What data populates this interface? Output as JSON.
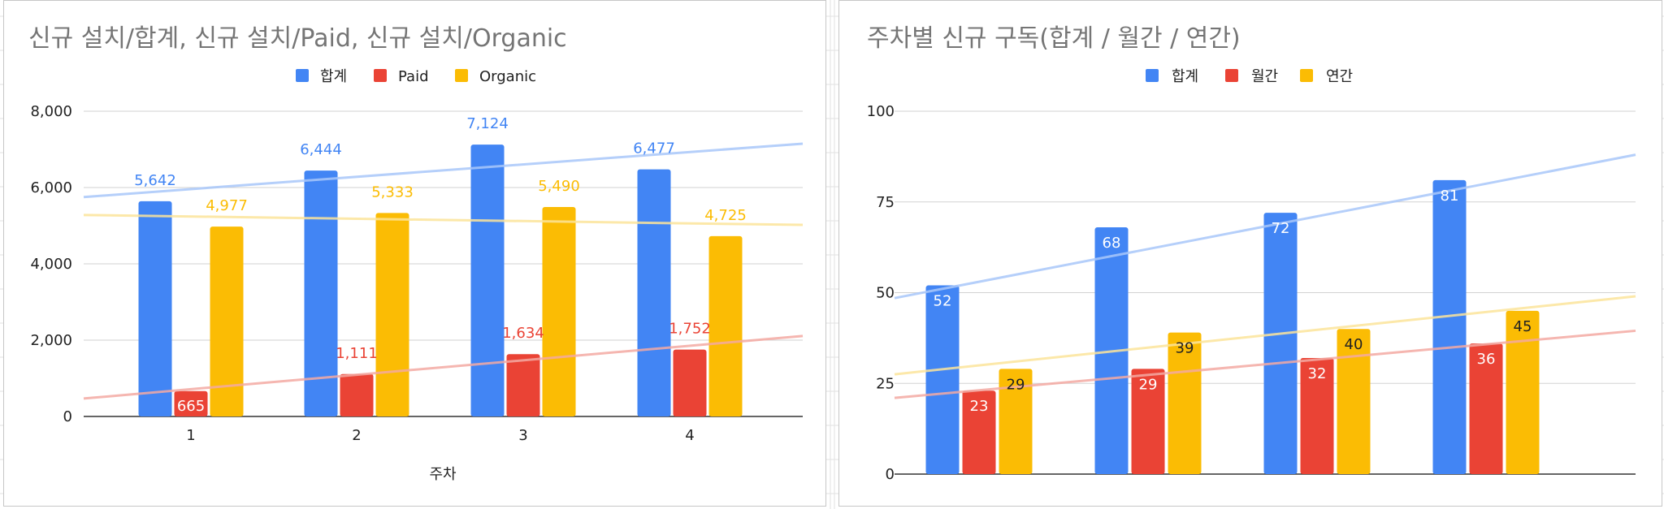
{
  "charts": [
    {
      "title": "신규 설치/합계, 신규 설치/Paid, 신규 설치/Organic",
      "legend": [
        "합계",
        "Paid",
        "Organic"
      ],
      "xlabel": "주차",
      "y_ticks": [
        "0",
        "2,000",
        "4,000",
        "6,000",
        "8,000"
      ],
      "data_labels": [
        [
          "5,642",
          "6,444",
          "7,124",
          "6,477"
        ],
        [
          "665",
          "1,111",
          "1,634",
          "1,752"
        ],
        [
          "4,977",
          "5,333",
          "5,490",
          "4,725"
        ]
      ]
    },
    {
      "title": "주차별 신규 구독(합계 / 월간 / 연간)",
      "legend": [
        "합계",
        "월간",
        "연간"
      ],
      "xlabel": "",
      "y_ticks": [
        "0",
        "25",
        "50",
        "75",
        "100"
      ],
      "data_labels": [
        [
          "52",
          "68",
          "72",
          "81"
        ],
        [
          "23",
          "29",
          "32",
          "36"
        ],
        [
          "29",
          "39",
          "40",
          "45"
        ]
      ]
    }
  ],
  "chart_data": [
    {
      "type": "bar",
      "title": "신규 설치/합계, 신규 설치/Paid, 신규 설치/Organic",
      "xlabel": "주차",
      "ylabel": "",
      "categories": [
        "1",
        "2",
        "3",
        "4"
      ],
      "series": [
        {
          "name": "합계",
          "values": [
            5642,
            6444,
            7124,
            6477
          ],
          "color": "#4285F4"
        },
        {
          "name": "Paid",
          "values": [
            665,
            1111,
            1634,
            1752
          ],
          "color": "#EA4335"
        },
        {
          "name": "Organic",
          "values": [
            4977,
            5333,
            5490,
            4725
          ],
          "color": "#FBBC04"
        }
      ],
      "trendlines": [
        {
          "series": "합계",
          "start": 5750,
          "end": 7150
        },
        {
          "series": "Paid",
          "start": 470,
          "end": 2110
        },
        {
          "series": "Organic",
          "start": 5280,
          "end": 5020
        }
      ],
      "ylim": [
        0,
        8000
      ],
      "grid": true,
      "legend_position": "top",
      "data_labels_outside": true
    },
    {
      "type": "bar",
      "title": "주차별 신규 구독(합계 / 월간 / 연간)",
      "xlabel": "",
      "ylabel": "",
      "categories": [
        "",
        "",
        "",
        ""
      ],
      "series": [
        {
          "name": "합계",
          "values": [
            52,
            68,
            72,
            81
          ],
          "color": "#4285F4"
        },
        {
          "name": "월간",
          "values": [
            23,
            29,
            32,
            36
          ],
          "color": "#EA4335"
        },
        {
          "name": "연간",
          "values": [
            29,
            39,
            40,
            45
          ],
          "color": "#FBBC04"
        }
      ],
      "trendlines": [
        {
          "series": "합계",
          "start": 48.5,
          "end": 88
        },
        {
          "series": "월간",
          "start": 21,
          "end": 39.5
        },
        {
          "series": "연간",
          "start": 27.5,
          "end": 49
        }
      ],
      "ylim": [
        0,
        100
      ],
      "grid": true,
      "legend_position": "top",
      "data_labels_outside": false
    }
  ]
}
